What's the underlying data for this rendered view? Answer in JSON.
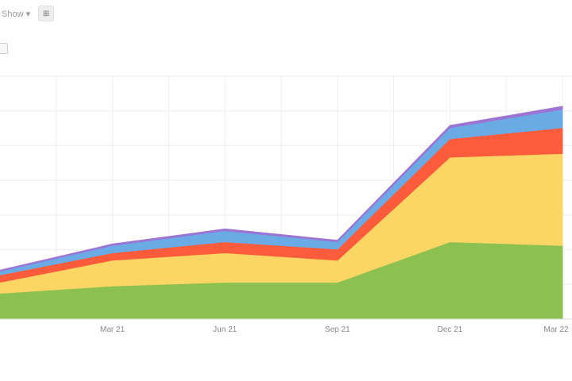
{
  "toolbar": {
    "range_label": "Show ▾",
    "zoom_button_label": "⊞"
  },
  "chart_data": {
    "type": "area",
    "stacked": true,
    "title": "",
    "xlabel": "",
    "ylabel": "",
    "categories": [
      "",
      "Mar 21",
      "Jun 21",
      "Sep 21",
      "Dec 21",
      "Mar 22"
    ],
    "series": [
      {
        "color": "#8cc152",
        "values": [
          7,
          9,
          10,
          10,
          21,
          20
        ]
      },
      {
        "color": "#fcd664",
        "values": [
          3,
          7,
          8,
          6,
          23,
          25
        ]
      },
      {
        "color": "#fc5c3c",
        "values": [
          2,
          2,
          3,
          3,
          5,
          7
        ]
      },
      {
        "color": "#6aabe6",
        "values": [
          1,
          2,
          3,
          2,
          3,
          5
        ]
      },
      {
        "color": "#9b74d4",
        "values": [
          0.3,
          0.4,
          0.5,
          0.4,
          0.6,
          0.8
        ]
      }
    ],
    "ylim": [
      0,
      66
    ],
    "grid": true,
    "legend": "none"
  }
}
